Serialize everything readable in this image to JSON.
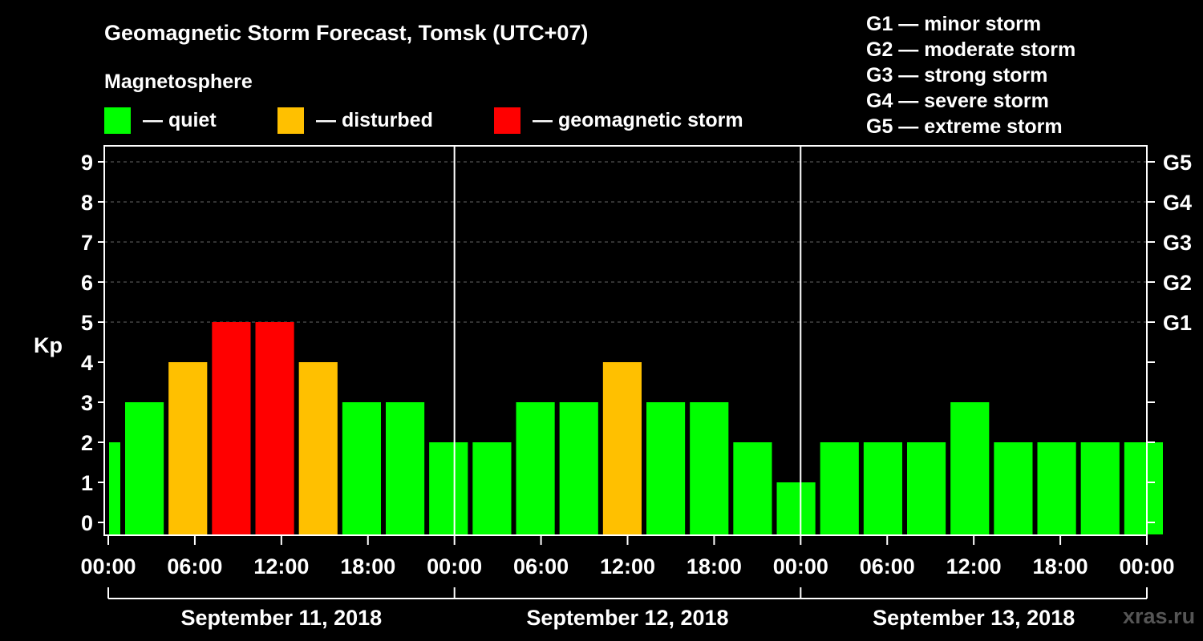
{
  "chart_data": {
    "type": "bar",
    "title": "Geomagnetic Storm Forecast, Tomsk (UTC+07)",
    "ylabel": "Kp",
    "ylim": [
      0,
      9
    ],
    "y_ticks": [
      "0",
      "1",
      "2",
      "3",
      "4",
      "5",
      "6",
      "7",
      "8",
      "9"
    ],
    "right_axis_ticks": [
      {
        "kp": 5,
        "label": "G1"
      },
      {
        "kp": 6,
        "label": "G2"
      },
      {
        "kp": 7,
        "label": "G3"
      },
      {
        "kp": 8,
        "label": "G4"
      },
      {
        "kp": 9,
        "label": "G5"
      }
    ],
    "x_tick_labels": [
      "00:00",
      "06:00",
      "12:00",
      "18:00",
      "00:00",
      "06:00",
      "12:00",
      "18:00",
      "00:00",
      "06:00",
      "12:00",
      "18:00",
      "00:00"
    ],
    "days": [
      "September 11, 2018",
      "September 12, 2018",
      "September 13, 2018"
    ],
    "values": [
      2,
      3,
      4,
      5,
      5,
      4,
      3,
      3,
      2,
      2,
      3,
      3,
      4,
      3,
      3,
      2,
      1,
      2,
      2,
      2,
      3,
      2,
      2,
      2,
      2
    ],
    "grid": true,
    "colors": {
      "quiet": "#00ff00",
      "disturbed": "#ffc000",
      "storm": "#ff0000"
    },
    "legend": {
      "heading": "Magnetosphere",
      "items": [
        {
          "color": "#00ff00",
          "label": "— quiet"
        },
        {
          "color": "#ffc000",
          "label": "— disturbed"
        },
        {
          "color": "#ff0000",
          "label": "— geomagnetic storm"
        }
      ]
    },
    "scale_legend": [
      "G1 — minor storm",
      "G2 — moderate storm",
      "G3 — strong storm",
      "G4 — severe storm",
      "G5 — extreme storm"
    ]
  },
  "watermark": "xras.ru"
}
